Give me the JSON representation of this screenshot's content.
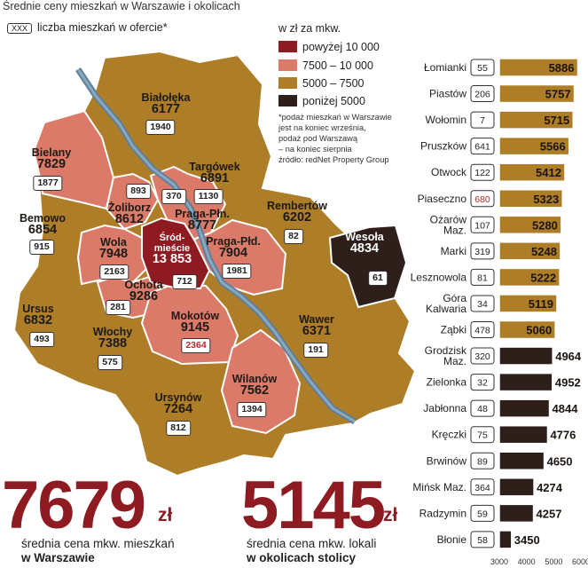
{
  "header": {
    "title": "Średnie ceny mieszkań w Warszawie i okolicach",
    "count_legend_box": "XXX",
    "count_legend_label": "liczba mieszkań w ofercie*"
  },
  "legend": {
    "title": "w zł za mkw.",
    "items": [
      {
        "label": "powyżej 10 000",
        "color": "#8d1b21"
      },
      {
        "label": "7500 – 10 000",
        "color": "#dc7a6a"
      },
      {
        "label": "5000 – 7500",
        "color": "#ad7d28"
      },
      {
        "label": "poniżej 5000",
        "color": "#2e1f1a"
      }
    ],
    "note": "*podaż mieszkań w Warszawie\njest na koniec września,\npodaż pod Warszawą\n– na koniec sierpnia\nźródło: redNet Property Group"
  },
  "districts": [
    {
      "name": "Białołęka",
      "price": "6177",
      "count": "1940"
    },
    {
      "name": "Bielany",
      "price": "7829",
      "count": "1877"
    },
    {
      "name": "Targówek",
      "price": "6891",
      "count": "1130"
    },
    {
      "name": "Żoliborz",
      "price": "8612",
      "count": "893"
    },
    {
      "name": "Praga-Płn.",
      "price": "8777",
      "count": "370"
    },
    {
      "name": "Rembertów",
      "price": "6202",
      "count": "82"
    },
    {
      "name": "Bemowo",
      "price": "6854",
      "count": "915"
    },
    {
      "name": "Wola",
      "price": "7948",
      "count": "2163"
    },
    {
      "name": "Śród-\nmieście",
      "price": "13 853",
      "count": "712"
    },
    {
      "name": "Praga-Płd.",
      "price": "7904",
      "count": "1981"
    },
    {
      "name": "Wesoła",
      "price": "4834",
      "count": "61"
    },
    {
      "name": "Ochota",
      "price": "9286",
      "count": "281"
    },
    {
      "name": "Ursus",
      "price": "6832",
      "count": "493"
    },
    {
      "name": "Mokotów",
      "price": "9145",
      "count": "2364"
    },
    {
      "name": "Wawer",
      "price": "6371",
      "count": "191"
    },
    {
      "name": "Włochy",
      "price": "7388",
      "count": "575"
    },
    {
      "name": "Wilanów",
      "price": "7562",
      "count": "1394"
    },
    {
      "name": "Ursynów",
      "price": "7264",
      "count": "812"
    }
  ],
  "chart_data": {
    "type": "bar",
    "orientation": "horizontal",
    "categories": [
      "Łomianki",
      "Piastów",
      "Wołomin",
      "Pruszków",
      "Otwock",
      "Piaseczno",
      "Ożarów\nMaz.",
      "Marki",
      "Lesznowola",
      "Góra\nKalwaria",
      "Ząbki",
      "Grodzisk\nMaz.",
      "Zielonka",
      "Jabłonna",
      "Kręczki",
      "Brwinów",
      "Mińsk Maz.",
      "Radzymin",
      "Błonie"
    ],
    "values": [
      5886,
      5757,
      5715,
      5566,
      5412,
      5323,
      5280,
      5248,
      5222,
      5119,
      5060,
      4964,
      4952,
      4844,
      4776,
      4650,
      4274,
      4257,
      3450
    ],
    "counts": [
      "55",
      "206",
      "7",
      "641",
      "122",
      "680",
      "107",
      "319",
      "81",
      "34",
      "478",
      "320",
      "32",
      "48",
      "75",
      "89",
      "364",
      "59",
      "58"
    ],
    "highlight_count_index": 5,
    "xlim": [
      3000,
      6000
    ],
    "xticks": [
      "3000",
      "4000",
      "5000",
      "6000"
    ],
    "colors": {
      "above_5000": "#ad7d28",
      "below_5000": "#2e1f1a",
      "highlight_count": "#c0262a"
    }
  },
  "summary": [
    {
      "value": "7679",
      "unit": "zł",
      "caption_line1": "średnia cena mkw. mieszkań",
      "caption_line2": "w Warszawie"
    },
    {
      "value": "5145",
      "unit": "zł",
      "caption_line1": "średnia cena mkw. lokali",
      "caption_line2": "w okolicach stolicy"
    }
  ]
}
